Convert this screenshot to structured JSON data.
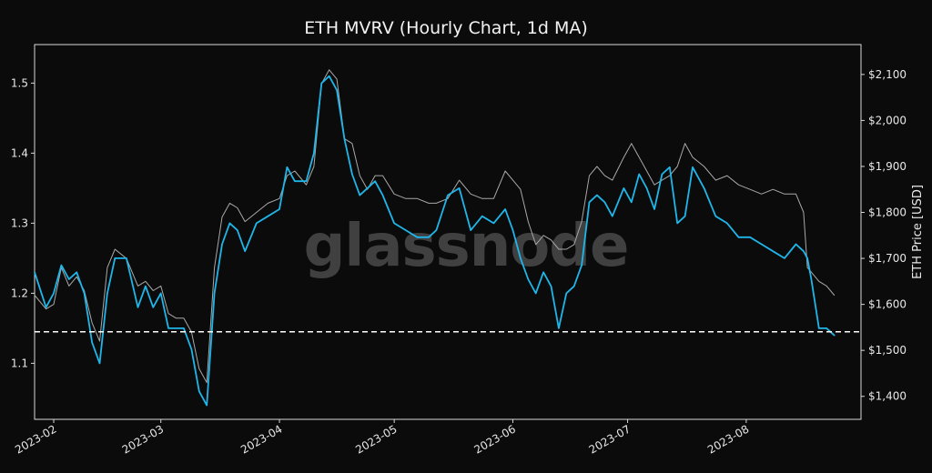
{
  "chart_data": {
    "type": "line",
    "title": "ETH MVRV (Hourly Chart, 1d MA)",
    "watermark": "glassnode",
    "x_tick_labels": [
      "2023-02",
      "2023-03",
      "2023-04",
      "2023-05",
      "2023-06",
      "2023-07",
      "2023-08"
    ],
    "x_range": [
      "2023-01-27",
      "2023-08-31"
    ],
    "left_axis": {
      "label": "",
      "range": [
        1.02,
        1.555
      ],
      "ticks": [
        1.1,
        1.2,
        1.3,
        1.4,
        1.5
      ],
      "tick_labels": [
        "1.1",
        "1.2",
        "1.3",
        "1.4",
        "1.5"
      ]
    },
    "right_axis": {
      "label": "ETH Price [USD]",
      "range": [
        1350,
        2165
      ],
      "ticks": [
        1400,
        1500,
        1600,
        1700,
        1800,
        1900,
        2000,
        2100
      ],
      "tick_labels": [
        "$1,400",
        "$1,500",
        "$1,600",
        "$1,700",
        "$1,800",
        "$1,900",
        "$2,000",
        "$2,100"
      ]
    },
    "reference_line": {
      "axis": "left",
      "value": 1.145,
      "style": "dashed",
      "color": "#ffffff"
    },
    "grid": false,
    "series": [
      {
        "axis": "left",
        "color": "#1fb6ea",
        "x": [
          "2023-01-27",
          "2023-01-30",
          "2023-02-01",
          "2023-02-03",
          "2023-02-05",
          "2023-02-07",
          "2023-02-09",
          "2023-02-11",
          "2023-02-13",
          "2023-02-15",
          "2023-02-17",
          "2023-02-20",
          "2023-02-23",
          "2023-02-25",
          "2023-02-27",
          "2023-03-01",
          "2023-03-03",
          "2023-03-05",
          "2023-03-07",
          "2023-03-09",
          "2023-03-11",
          "2023-03-13",
          "2023-03-15",
          "2023-03-17",
          "2023-03-19",
          "2023-03-21",
          "2023-03-23",
          "2023-03-26",
          "2023-03-29",
          "2023-04-01",
          "2023-04-03",
          "2023-04-05",
          "2023-04-08",
          "2023-04-10",
          "2023-04-12",
          "2023-04-14",
          "2023-04-16",
          "2023-04-18",
          "2023-04-20",
          "2023-04-22",
          "2023-04-24",
          "2023-04-26",
          "2023-04-28",
          "2023-05-01",
          "2023-05-04",
          "2023-05-07",
          "2023-05-10",
          "2023-05-12",
          "2023-05-15",
          "2023-05-18",
          "2023-05-21",
          "2023-05-24",
          "2023-05-27",
          "2023-05-30",
          "2023-06-01",
          "2023-06-03",
          "2023-06-05",
          "2023-06-07",
          "2023-06-09",
          "2023-06-11",
          "2023-06-13",
          "2023-06-15",
          "2023-06-17",
          "2023-06-19",
          "2023-06-21",
          "2023-06-23",
          "2023-06-25",
          "2023-06-27",
          "2023-06-30",
          "2023-07-02",
          "2023-07-04",
          "2023-07-06",
          "2023-07-08",
          "2023-07-10",
          "2023-07-12",
          "2023-07-14",
          "2023-07-16",
          "2023-07-18",
          "2023-07-21",
          "2023-07-24",
          "2023-07-27",
          "2023-07-30",
          "2023-08-02",
          "2023-08-05",
          "2023-08-08",
          "2023-08-11",
          "2023-08-14",
          "2023-08-16",
          "2023-08-17",
          "2023-08-18",
          "2023-08-20",
          "2023-08-22",
          "2023-08-24"
        ],
        "values": [
          1.23,
          1.18,
          1.2,
          1.24,
          1.22,
          1.23,
          1.2,
          1.13,
          1.1,
          1.2,
          1.25,
          1.25,
          1.18,
          1.21,
          1.18,
          1.2,
          1.15,
          1.15,
          1.15,
          1.12,
          1.06,
          1.04,
          1.2,
          1.27,
          1.3,
          1.29,
          1.26,
          1.3,
          1.31,
          1.32,
          1.38,
          1.36,
          1.36,
          1.4,
          1.5,
          1.51,
          1.49,
          1.42,
          1.37,
          1.34,
          1.35,
          1.36,
          1.34,
          1.3,
          1.29,
          1.28,
          1.28,
          1.29,
          1.34,
          1.35,
          1.29,
          1.31,
          1.3,
          1.32,
          1.29,
          1.25,
          1.22,
          1.2,
          1.23,
          1.21,
          1.15,
          1.2,
          1.21,
          1.24,
          1.33,
          1.34,
          1.33,
          1.31,
          1.35,
          1.33,
          1.37,
          1.35,
          1.32,
          1.37,
          1.38,
          1.3,
          1.31,
          1.38,
          1.35,
          1.31,
          1.3,
          1.28,
          1.28,
          1.27,
          1.26,
          1.25,
          1.27,
          1.26,
          1.25,
          1.22,
          1.15,
          1.15,
          1.14
        ]
      },
      {
        "axis": "right",
        "color": "#a8a8a8",
        "x": [
          "2023-01-27",
          "2023-01-30",
          "2023-02-01",
          "2023-02-03",
          "2023-02-05",
          "2023-02-07",
          "2023-02-09",
          "2023-02-11",
          "2023-02-13",
          "2023-02-15",
          "2023-02-17",
          "2023-02-20",
          "2023-02-23",
          "2023-02-25",
          "2023-02-27",
          "2023-03-01",
          "2023-03-03",
          "2023-03-05",
          "2023-03-07",
          "2023-03-09",
          "2023-03-11",
          "2023-03-13",
          "2023-03-15",
          "2023-03-17",
          "2023-03-19",
          "2023-03-21",
          "2023-03-23",
          "2023-03-26",
          "2023-03-29",
          "2023-04-01",
          "2023-04-03",
          "2023-04-05",
          "2023-04-08",
          "2023-04-10",
          "2023-04-12",
          "2023-04-14",
          "2023-04-16",
          "2023-04-18",
          "2023-04-20",
          "2023-04-22",
          "2023-04-24",
          "2023-04-26",
          "2023-04-28",
          "2023-05-01",
          "2023-05-04",
          "2023-05-07",
          "2023-05-10",
          "2023-05-12",
          "2023-05-15",
          "2023-05-18",
          "2023-05-21",
          "2023-05-24",
          "2023-05-27",
          "2023-05-30",
          "2023-06-01",
          "2023-06-03",
          "2023-06-05",
          "2023-06-07",
          "2023-06-09",
          "2023-06-11",
          "2023-06-13",
          "2023-06-15",
          "2023-06-17",
          "2023-06-19",
          "2023-06-21",
          "2023-06-23",
          "2023-06-25",
          "2023-06-27",
          "2023-06-30",
          "2023-07-02",
          "2023-07-04",
          "2023-07-06",
          "2023-07-08",
          "2023-07-10",
          "2023-07-12",
          "2023-07-14",
          "2023-07-16",
          "2023-07-18",
          "2023-07-21",
          "2023-07-24",
          "2023-07-27",
          "2023-07-30",
          "2023-08-02",
          "2023-08-05",
          "2023-08-08",
          "2023-08-11",
          "2023-08-14",
          "2023-08-16",
          "2023-08-17",
          "2023-08-18",
          "2023-08-20",
          "2023-08-22",
          "2023-08-24"
        ],
        "values": [
          1620,
          1590,
          1600,
          1680,
          1640,
          1660,
          1630,
          1560,
          1520,
          1680,
          1720,
          1700,
          1640,
          1650,
          1630,
          1640,
          1580,
          1570,
          1570,
          1540,
          1460,
          1430,
          1680,
          1790,
          1820,
          1810,
          1780,
          1800,
          1820,
          1830,
          1880,
          1890,
          1860,
          1900,
          2080,
          2110,
          2090,
          1960,
          1950,
          1880,
          1850,
          1880,
          1880,
          1840,
          1830,
          1830,
          1820,
          1820,
          1830,
          1870,
          1840,
          1830,
          1830,
          1890,
          1870,
          1850,
          1780,
          1730,
          1750,
          1740,
          1720,
          1720,
          1730,
          1780,
          1880,
          1900,
          1880,
          1870,
          1920,
          1950,
          1920,
          1890,
          1860,
          1870,
          1880,
          1900,
          1950,
          1920,
          1900,
          1870,
          1880,
          1860,
          1850,
          1840,
          1850,
          1840,
          1840,
          1800,
          1680,
          1670,
          1650,
          1640,
          1620
        ]
      }
    ]
  }
}
